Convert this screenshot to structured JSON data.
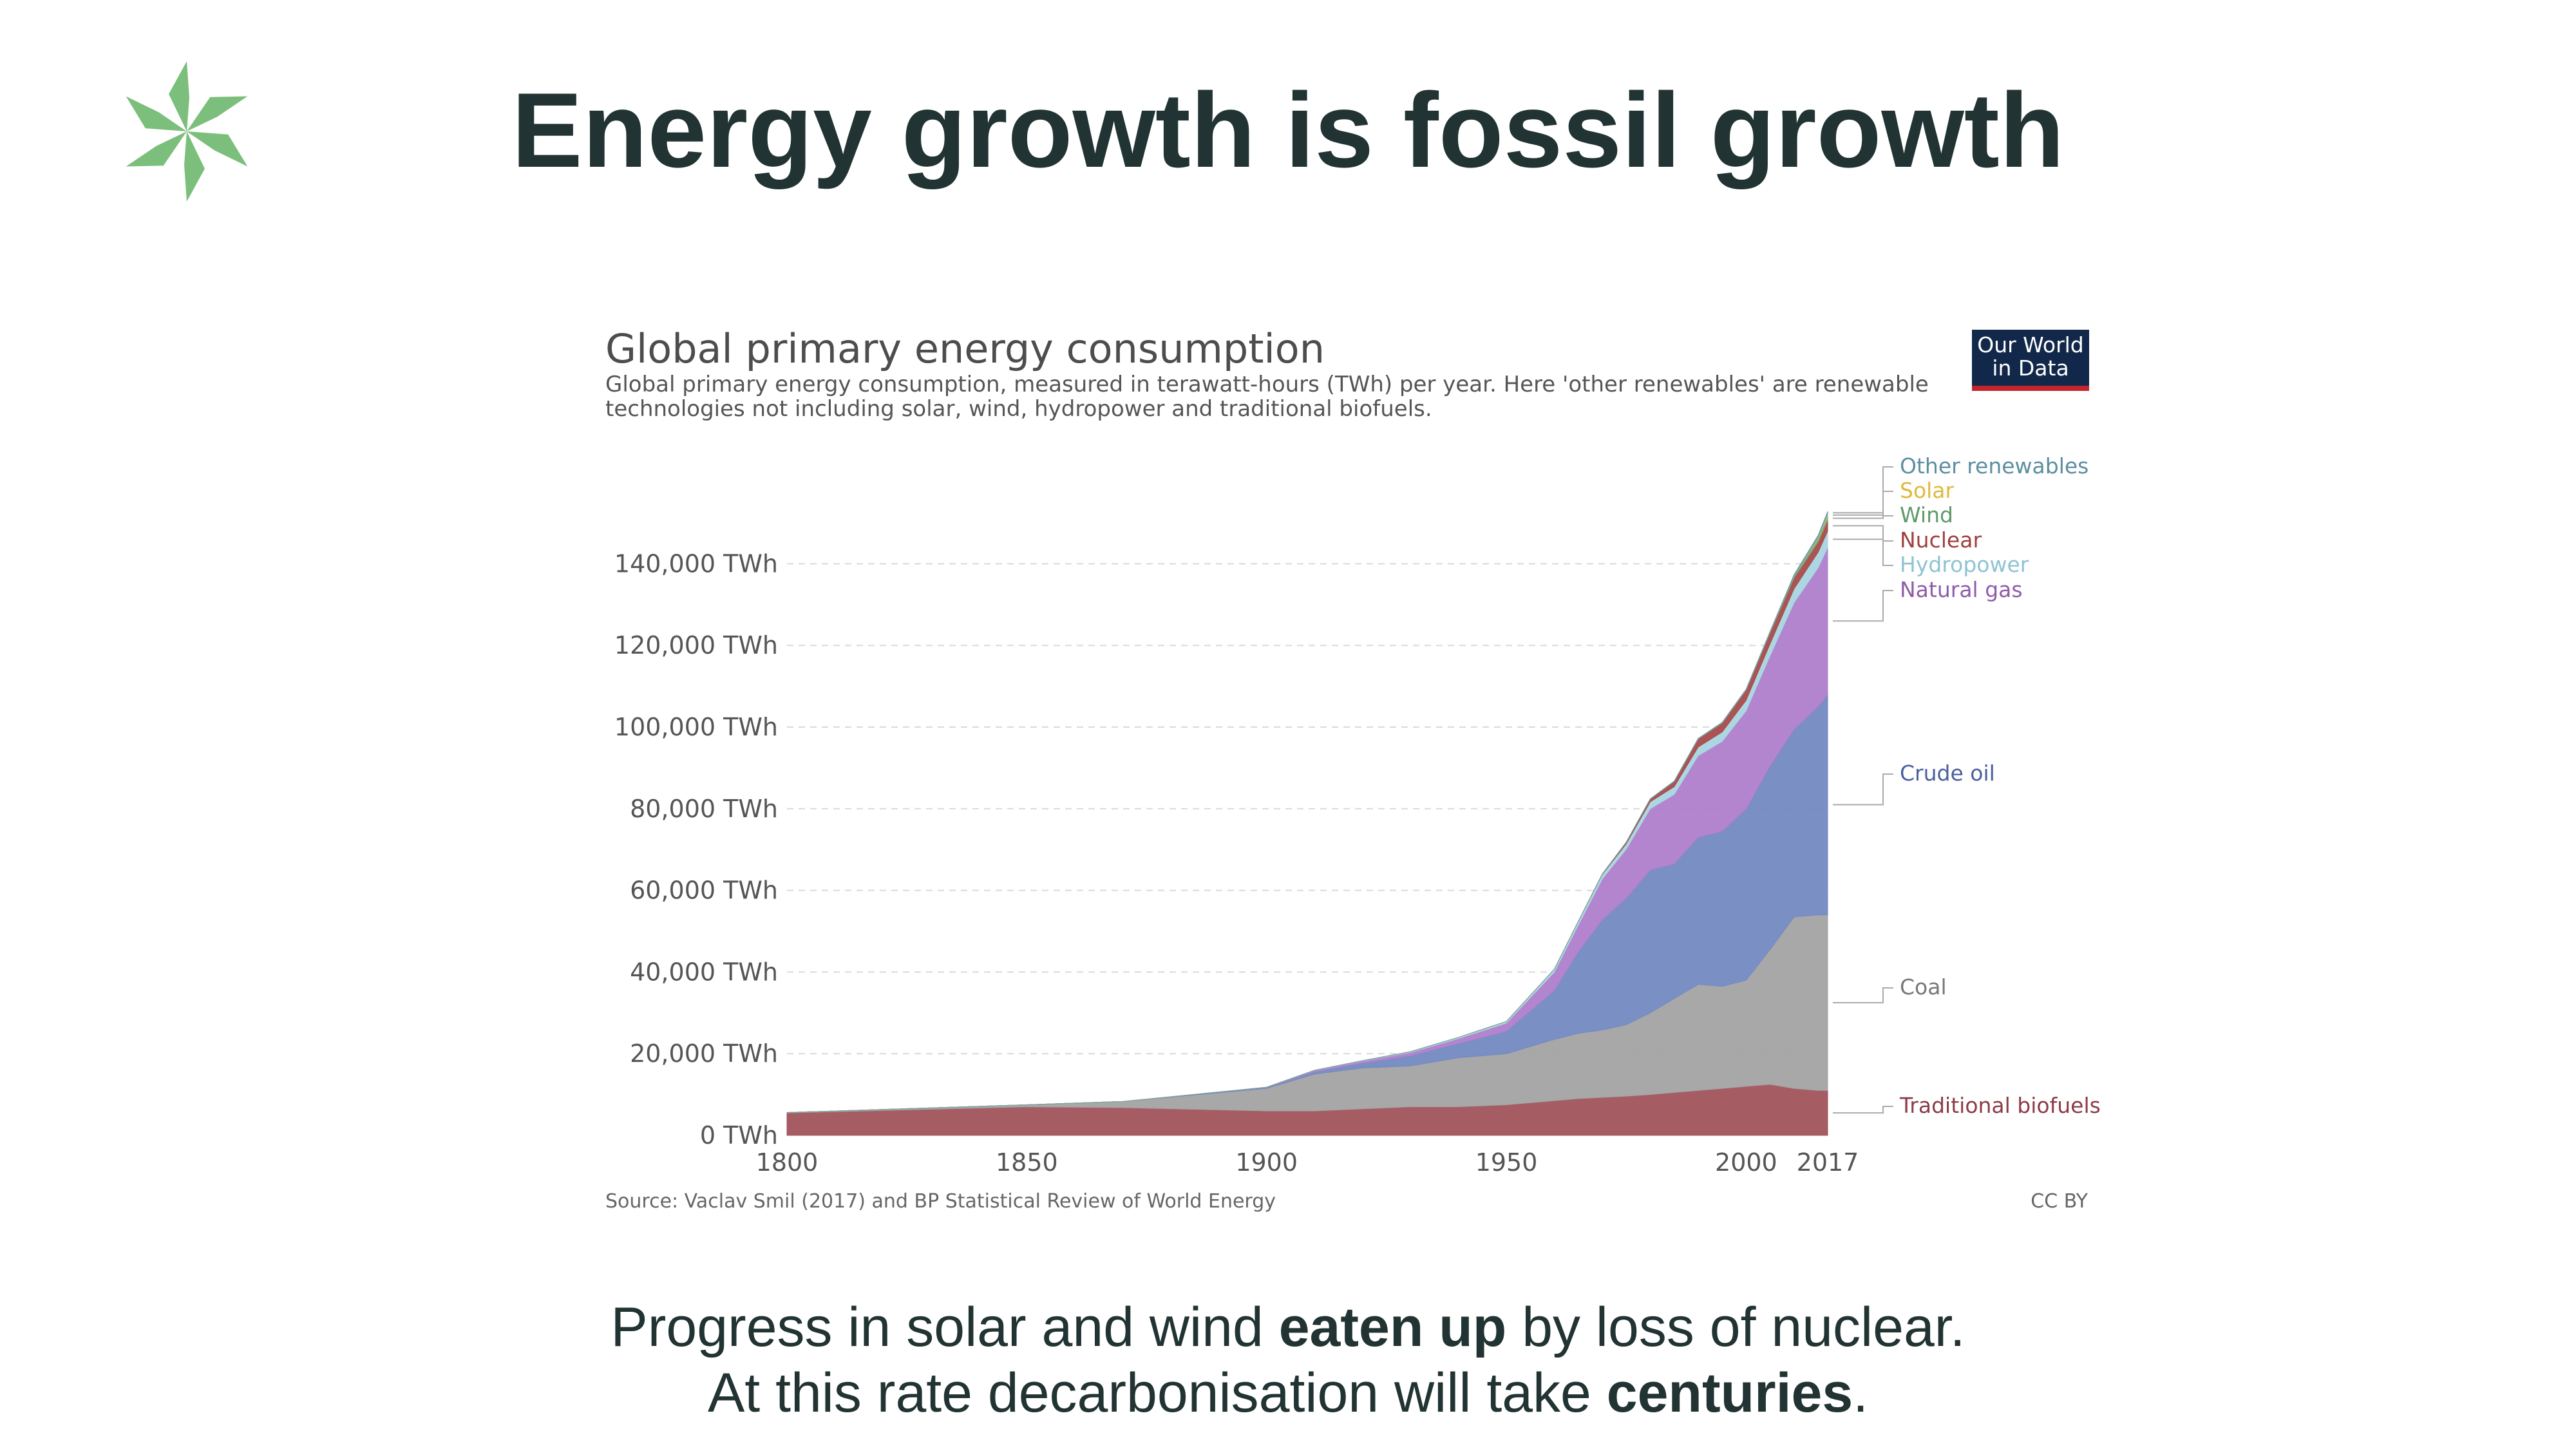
{
  "slide": {
    "title": "Energy growth is fossil growth",
    "footer_line1_a": "Progress in solar and wind ",
    "footer_line1_bold": "eaten up",
    "footer_line1_b": " by loss of nuclear.",
    "footer_line2_a": "At this rate decarbonisation will take ",
    "footer_line2_bold": "centuries",
    "footer_line2_b": ".",
    "logo_icon": "asterisk-logo-icon",
    "accent_color": "#7cbf7c"
  },
  "badge": {
    "line1": "Our World",
    "line2": "in Data"
  },
  "chart_data": {
    "type": "area",
    "stacked": true,
    "title": "Global primary energy consumption",
    "subtitle": "Global primary energy consumption, measured in terawatt-hours (TWh) per year. Here 'other renewables' are renewable technologies not including solar, wind, hydropower and traditional biofuels.",
    "source": "Source: Vaclav Smil (2017) and BP Statistical Review of World Energy",
    "license": "CC BY",
    "xlim": [
      1800,
      2017
    ],
    "ylim": [
      0,
      150000
    ],
    "x_ticks": [
      "1800",
      "1850",
      "1900",
      "1950",
      "2000",
      "2017"
    ],
    "x_tick_values": [
      1800,
      1850,
      1900,
      1950,
      2000,
      2017
    ],
    "y_ticks": [
      "0 TWh",
      "20,000 TWh",
      "40,000 TWh",
      "60,000 TWh",
      "80,000 TWh",
      "100,000 TWh",
      "120,000 TWh",
      "140,000 TWh"
    ],
    "y_tick_values": [
      0,
      20000,
      40000,
      60000,
      80000,
      100000,
      120000,
      140000
    ],
    "x": [
      1800,
      1850,
      1870,
      1900,
      1910,
      1920,
      1930,
      1940,
      1950,
      1960,
      1965,
      1970,
      1975,
      1980,
      1985,
      1990,
      1995,
      2000,
      2005,
      2010,
      2015,
      2017
    ],
    "series": [
      {
        "name": "Traditional biofuels",
        "color": "#a0545b",
        "values": [
          5500,
          7000,
          6800,
          6000,
          6000,
          6500,
          7000,
          7000,
          7500,
          8500,
          9000,
          9300,
          9600,
          10000,
          10500,
          11000,
          11500,
          12000,
          12500,
          11500,
          11000,
          11000
        ]
      },
      {
        "name": "Coal",
        "color": "#a3a3a3",
        "values": [
          100,
          500,
          1500,
          5500,
          9000,
          10000,
          10000,
          12000,
          12500,
          15000,
          16000,
          16500,
          17500,
          20000,
          23000,
          26000,
          25000,
          26000,
          33000,
          42000,
          43000,
          43000
        ]
      },
      {
        "name": "Crude oil",
        "color": "#7389c1",
        "values": [
          0,
          0,
          0,
          200,
          600,
          1200,
          2500,
          3500,
          5500,
          12000,
          20000,
          27000,
          31000,
          35000,
          33000,
          36000,
          38000,
          42000,
          45000,
          46000,
          51000,
          54000
        ]
      },
      {
        "name": "Natural gas",
        "color": "#b07ecc",
        "values": [
          0,
          0,
          0,
          100,
          300,
          500,
          800,
          1200,
          2000,
          4500,
          6500,
          10000,
          12000,
          15000,
          17000,
          20000,
          22000,
          24000,
          27000,
          31000,
          34000,
          36000
        ]
      },
      {
        "name": "Hydropower",
        "color": "#a8d5e0",
        "values": [
          0,
          0,
          0,
          0,
          50,
          100,
          200,
          300,
          400,
          700,
          900,
          1100,
          1300,
          1700,
          1900,
          2100,
          2300,
          2600,
          2900,
          3400,
          3800,
          4000
        ]
      },
      {
        "name": "Nuclear",
        "color": "#a84a4a",
        "values": [
          0,
          0,
          0,
          0,
          0,
          0,
          0,
          0,
          0,
          0,
          30,
          100,
          400,
          700,
          1300,
          2000,
          2200,
          2500,
          2700,
          2700,
          2500,
          2600
        ]
      },
      {
        "name": "Wind",
        "color": "#7fa873",
        "values": [
          0,
          0,
          0,
          0,
          0,
          0,
          0,
          0,
          0,
          0,
          0,
          0,
          0,
          0,
          0,
          10,
          20,
          30,
          100,
          350,
          850,
          1100
        ]
      },
      {
        "name": "Solar",
        "color": "#e6c34d",
        "values": [
          0,
          0,
          0,
          0,
          0,
          0,
          0,
          0,
          0,
          0,
          0,
          0,
          0,
          0,
          0,
          0,
          0,
          0,
          0,
          30,
          250,
          450
        ]
      },
      {
        "name": "Other renewables",
        "color": "#6aa1ad",
        "values": [
          0,
          0,
          0,
          0,
          0,
          0,
          0,
          0,
          0,
          0,
          0,
          0,
          20,
          40,
          80,
          120,
          150,
          180,
          250,
          400,
          550,
          650
        ]
      }
    ]
  }
}
